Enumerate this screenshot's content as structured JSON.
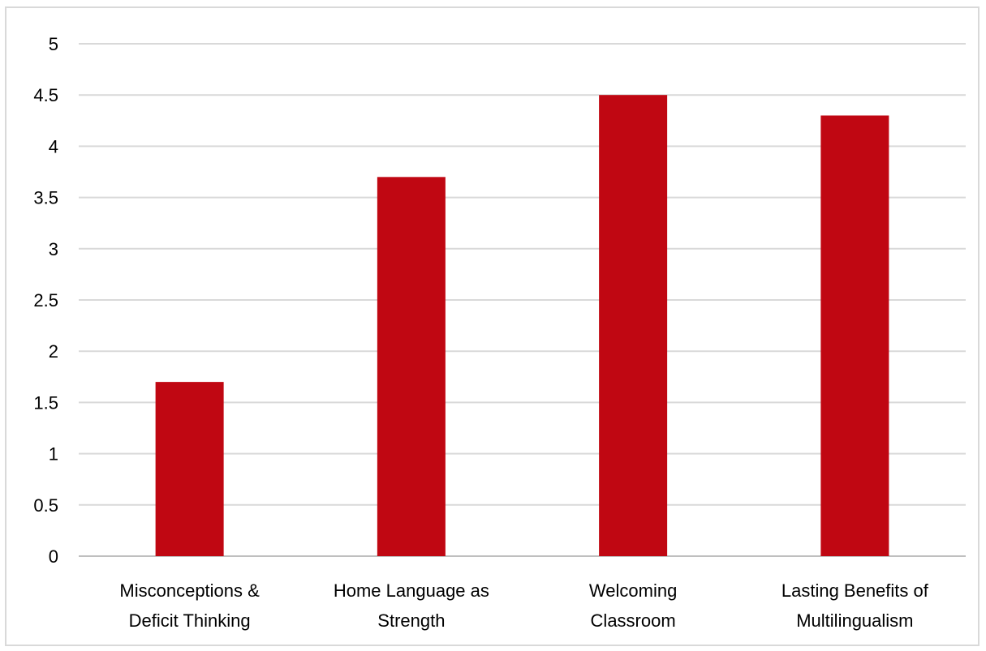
{
  "chart_data": {
    "type": "bar",
    "title": "",
    "xlabel": "",
    "ylabel": "",
    "categories": [
      [
        "Misconceptions &",
        "Deficit Thinking"
      ],
      [
        "Home Language as",
        "Strength"
      ],
      [
        "Welcoming",
        "Classroom"
      ],
      [
        "Lasting Benefits of",
        "Multilingualism"
      ]
    ],
    "values": [
      1.7,
      3.7,
      4.5,
      4.3
    ],
    "ylim": [
      0,
      5
    ],
    "yticks": [
      "0",
      "0.5",
      "1",
      "1.5",
      "2",
      "2.5",
      "3",
      "3.5",
      "4",
      "4.5",
      "5"
    ],
    "grid": true,
    "legend": "none",
    "colors": {
      "bar": "#c00712",
      "grid": "#d9d9d9",
      "axis": "#bfbfbf"
    }
  }
}
